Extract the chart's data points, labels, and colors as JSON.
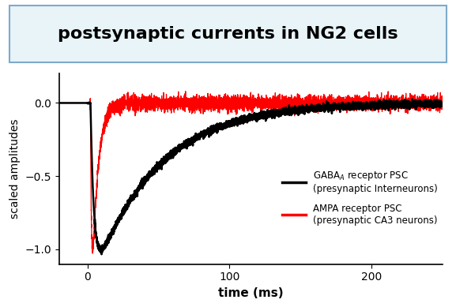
{
  "title": "postsynaptic currents in NG2 cells",
  "title_fontsize": 16,
  "title_bg_color": "#e8f4f8",
  "title_border_color": "#7faacc",
  "xlabel": "time (ms)",
  "ylabel": "scaled amplitudes",
  "xlim": [
    -20,
    250
  ],
  "ylim": [
    -1.1,
    0.2
  ],
  "xticks": [
    0,
    100,
    200
  ],
  "yticks": [
    -1.0,
    -0.5,
    0.0
  ],
  "black_line_color": "#000000",
  "red_line_color": "#ff0000",
  "legend_label_black": "GABA$_A$ receptor PSC\n(presynaptic Interneurons)",
  "legend_label_red": "AMPA receptor PSC\n(presynaptic CA3 neurons)",
  "background_color": "#ffffff",
  "black_tau_rise": 2.5,
  "black_tau_decay": 45.0,
  "red_tau_rise": 0.8,
  "red_tau_decay": 4.0,
  "noise_red": 0.025,
  "noise_black": 0.012
}
